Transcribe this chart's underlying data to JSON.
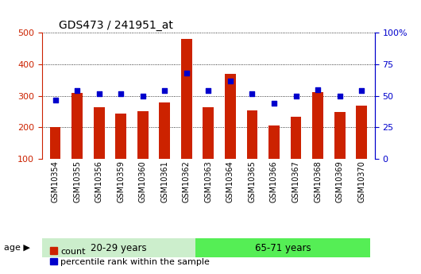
{
  "title": "GDS473 / 241951_at",
  "samples": [
    "GSM10354",
    "GSM10355",
    "GSM10356",
    "GSM10359",
    "GSM10360",
    "GSM10361",
    "GSM10362",
    "GSM10363",
    "GSM10364",
    "GSM10365",
    "GSM10366",
    "GSM10367",
    "GSM10368",
    "GSM10369",
    "GSM10370"
  ],
  "counts": [
    200,
    310,
    265,
    245,
    252,
    280,
    480,
    265,
    370,
    255,
    205,
    235,
    312,
    248,
    270
  ],
  "percentiles": [
    47,
    54,
    52,
    52,
    50,
    54,
    68,
    54,
    62,
    52,
    44,
    50,
    55,
    50,
    54
  ],
  "group1_label": "20-29 years",
  "group2_label": "65-71 years",
  "group1_count": 7,
  "group2_count": 8,
  "ylim": [
    100,
    500
  ],
  "yticks": [
    100,
    200,
    300,
    400,
    500
  ],
  "y2lim": [
    0,
    100
  ],
  "y2ticks": [
    0,
    25,
    50,
    75,
    100
  ],
  "bar_color": "#cc2200",
  "dot_color": "#0000cc",
  "group1_bg": "#cceecc",
  "group2_bg": "#55ee55",
  "bar_bottom": 100,
  "legend_count_label": "count",
  "legend_pct_label": "percentile rank within the sample",
  "age_label": "age",
  "n_group1": 7,
  "n_group2": 8
}
